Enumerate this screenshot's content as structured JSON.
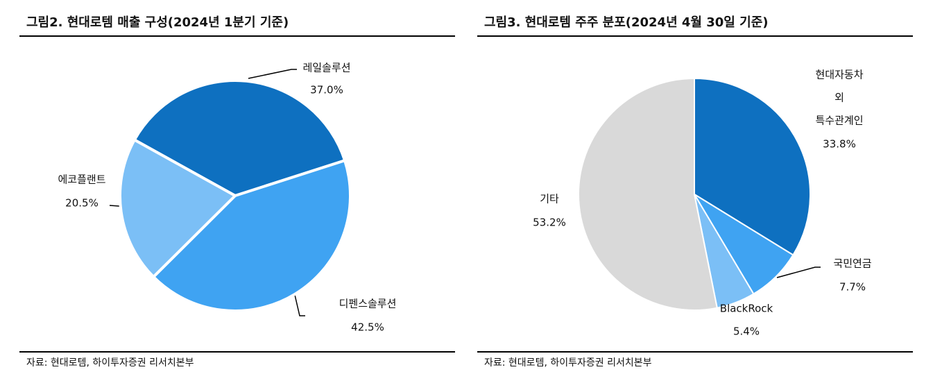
{
  "chart_data": [
    {
      "type": "pie",
      "title": "그림2. 현대로템 매출 구성(2024년 1분기 기준)",
      "categories": [
        "레일솔루션",
        "디펜스솔루션",
        "에코플랜트"
      ],
      "values": [
        37.0,
        42.5,
        20.5
      ],
      "value_labels": [
        "37.0%",
        "42.5%",
        "20.5%"
      ],
      "colors": [
        "#0e70c0",
        "#3fa3f2",
        "#7bbff6"
      ],
      "source": "자료: 현대로템, 하이투자증권 리서치본부"
    },
    {
      "type": "pie",
      "title": "그림3. 현대로템 주주 분포(2024년 4월 30일 기준)",
      "categories": [
        "현대자동차\n외\n특수관계인",
        "국민연금",
        "BlackRock",
        "기타"
      ],
      "values": [
        33.8,
        7.7,
        5.4,
        53.2
      ],
      "value_labels": [
        "33.8%",
        "7.7%",
        "5.4%",
        "53.2%"
      ],
      "colors": [
        "#0e70c0",
        "#3fa3f2",
        "#7bbff6",
        "#d9d9d9"
      ],
      "source": "자료: 현대로템, 하이투자증권 리서치본부"
    }
  ]
}
